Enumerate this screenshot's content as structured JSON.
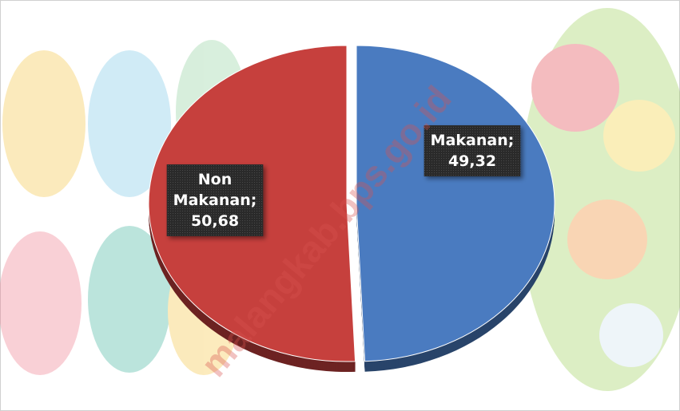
{
  "chart_data": {
    "type": "pie",
    "values": [
      49.32,
      50.68
    ],
    "value_labels": [
      "Makanan; 49,32",
      "Non Makanan; 50,68"
    ],
    "colors": [
      "#4a7bc0",
      "#c6403d"
    ],
    "watermark": "malangkab.bps.go.id"
  }
}
